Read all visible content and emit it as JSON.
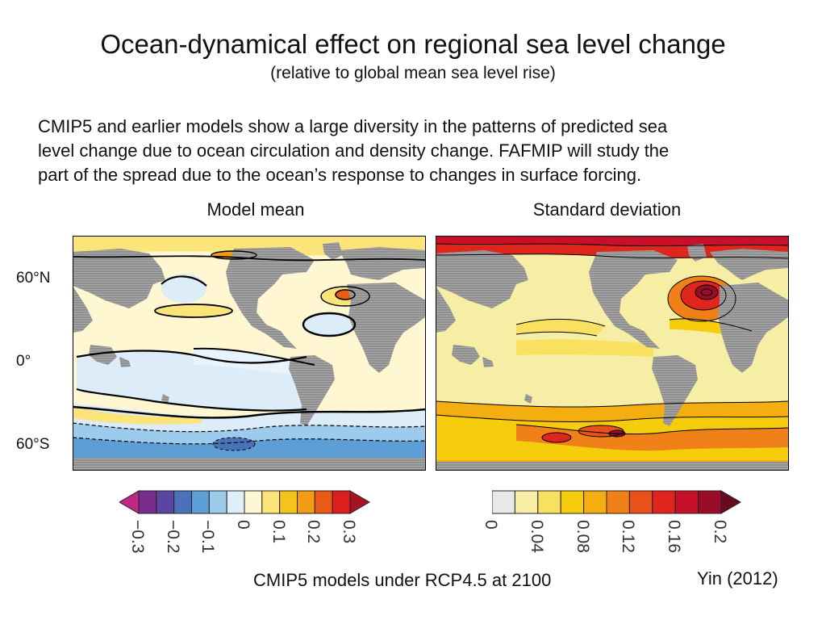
{
  "title": "Ocean-dynamical effect on regional sea level change",
  "subtitle": "(relative to global mean sea level rise)",
  "body_lines": [
    "CMIP5 and earlier models show a large diversity in the patterns of predicted sea",
    "level change due to ocean circulation and density change. FAFMIP will study the",
    "part of the spread due to the ocean’s response to changes in surface forcing."
  ],
  "panels": {
    "left_title": "Model mean",
    "right_title": "Standard deviation"
  },
  "lat_labels": [
    "60°N",
    "0°",
    "60°S"
  ],
  "colorbar_left": {
    "colors": [
      "#c1287f",
      "#7b2d8e",
      "#5a45a0",
      "#4a72b8",
      "#5d9ed6",
      "#9ccbec",
      "#e0eefa",
      "#fff7d2",
      "#fbe57a",
      "#f5c418",
      "#f29b14",
      "#ea5a15",
      "#dc1e1e",
      "#a81225"
    ],
    "ticks": [
      "−0.3",
      "−0.2",
      "−0.1",
      "0",
      "0.1",
      "0.2",
      "0.3"
    ]
  },
  "colorbar_right": {
    "colors": [
      "#e8e8e6",
      "#f6eea4",
      "#f8e160",
      "#f6cd0c",
      "#f4ae10",
      "#ef8118",
      "#e8521a",
      "#e0261c",
      "#c8102a",
      "#9a0d28",
      "#6a0a1e"
    ],
    "ticks": [
      "0",
      "0.04",
      "0.08",
      "0.12",
      "0.16",
      "0.2"
    ]
  },
  "footer": "CMIP5 models under RCP4.5 at 2100",
  "credit": "Yin (2012)"
}
